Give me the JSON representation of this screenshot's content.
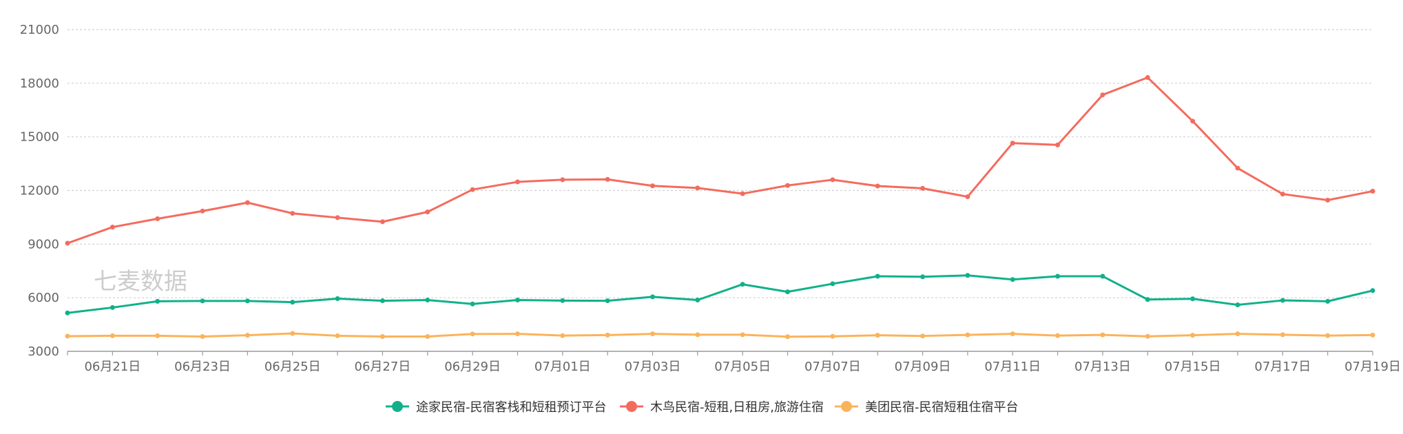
{
  "chart_data": {
    "type": "line",
    "x": [
      "06月20日",
      "06月21日",
      "06月22日",
      "06月23日",
      "06月24日",
      "06月25日",
      "06月26日",
      "06月27日",
      "06月28日",
      "06月29日",
      "06月30日",
      "07月01日",
      "07月02日",
      "07月03日",
      "07月04日",
      "07月05日",
      "07月06日",
      "07月07日",
      "07月08日",
      "07月09日",
      "07月10日",
      "07月11日",
      "07月12日",
      "07月13日",
      "07月14日",
      "07月15日",
      "07月16日",
      "07月17日",
      "07月18日",
      "07月19日"
    ],
    "x_tick_labels": [
      "06月21日",
      "06月23日",
      "06月25日",
      "06月27日",
      "06月29日",
      "07月01日",
      "07月03日",
      "07月05日",
      "07月07日",
      "07月09日",
      "07月11日",
      "07月13日",
      "07月15日",
      "07月17日",
      "07月19日"
    ],
    "ylim": [
      3000,
      21000
    ],
    "yticks": [
      3000,
      6000,
      9000,
      12000,
      15000,
      18000,
      21000
    ],
    "grid": true,
    "legend_position": "bottom-center",
    "series": [
      {
        "name": "途家民宿-民宿客栈和短租预订平台",
        "color": "#10b18a",
        "values": [
          5150,
          5450,
          5800,
          5820,
          5820,
          5750,
          5950,
          5830,
          5870,
          5650,
          5870,
          5840,
          5830,
          6050,
          5870,
          6750,
          6330,
          6780,
          7200,
          7170,
          7250,
          7020,
          7200,
          7200,
          5900,
          5940,
          5600,
          5850,
          5800,
          6400
        ]
      },
      {
        "name": "木鸟民宿-短租,日租房,旅游住宿",
        "color": "#f46b5e",
        "values": [
          9050,
          9950,
          10420,
          10850,
          11320,
          10720,
          10480,
          10250,
          10800,
          12050,
          12480,
          12600,
          12620,
          12260,
          12140,
          11820,
          12280,
          12600,
          12250,
          12120,
          11650,
          14650,
          14550,
          17350,
          18320,
          15880,
          13250,
          11800,
          11460,
          11960
        ]
      },
      {
        "name": "美团民宿-民宿短租住宿平台",
        "color": "#fbb35a",
        "values": [
          3850,
          3870,
          3870,
          3830,
          3900,
          4000,
          3870,
          3830,
          3830,
          3970,
          3980,
          3880,
          3910,
          3980,
          3930,
          3930,
          3820,
          3840,
          3900,
          3860,
          3920,
          3980,
          3880,
          3920,
          3840,
          3900,
          3980,
          3930,
          3880,
          3910
        ]
      }
    ]
  },
  "watermark": "七麦数据"
}
